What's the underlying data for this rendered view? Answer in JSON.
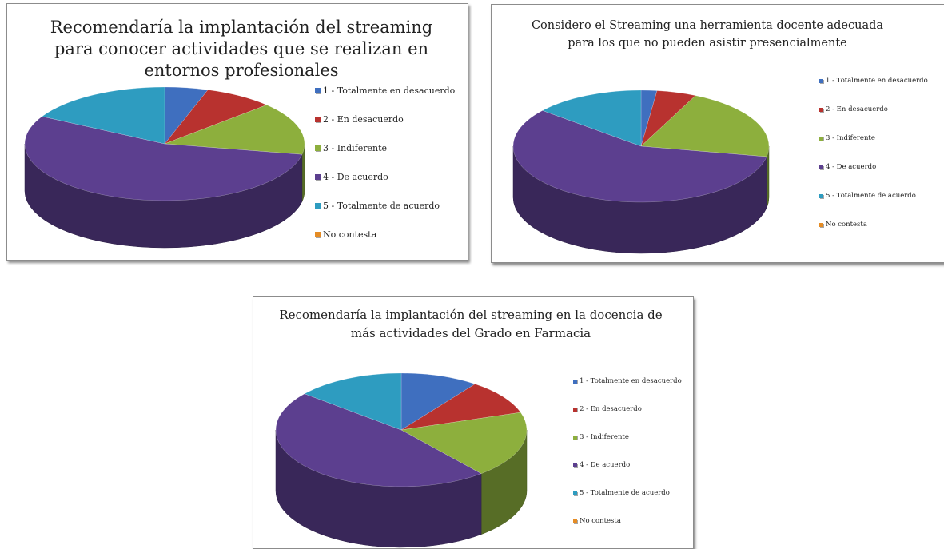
{
  "categories": [
    "1 - Totalmente en desacuerdo",
    "2 - En desacuerdo",
    "3 - Indiferente",
    "4 - De acuerdo",
    "5 - Totalmente de acuerdo",
    "No contesta"
  ],
  "colors": [
    "#3F6FBF",
    "#B8322F",
    "#8DAF3D",
    "#5C3F8F",
    "#2E9CC0",
    "#E58C25"
  ],
  "chart_data": [
    {
      "type": "pie",
      "title": "Recomendaría la implantación del streaming\npara conocer actividades que se realizan en\nentornos profesionales",
      "categories": [
        "1 - Totalmente en desacuerdo",
        "2 - En desacuerdo",
        "3 - Indiferente",
        "4 - De acuerdo",
        "5 - Totalmente de acuerdo",
        "No contesta"
      ],
      "values": [
        5,
        8,
        15,
        55,
        17,
        0
      ],
      "unit": "%",
      "legend_position": "right",
      "style": "3d"
    },
    {
      "type": "pie",
      "title": "Considero el Streaming una herramienta docente adecuada\npara los que no pueden asistir presencialmente",
      "categories": [
        "1 - Totalmente en desacuerdo",
        "2 - En desacuerdo",
        "3 - Indiferente",
        "4 - De acuerdo",
        "5 - Totalmente de acuerdo",
        "No contesta"
      ],
      "values": [
        2,
        5,
        21,
        58,
        14,
        0
      ],
      "unit": "%",
      "legend_position": "right",
      "style": "3d"
    },
    {
      "type": "pie",
      "title": "Recomendaría la implantación del streaming en la docencia de\nmás actividades del Grado en Farmacia",
      "categories": [
        "1 - Totalmente en desacuerdo",
        "2 - En desacuerdo",
        "3 - Indiferente",
        "4 - De acuerdo",
        "5 - Totalmente de acuerdo",
        "No contesta"
      ],
      "values": [
        10,
        10,
        19,
        47,
        14,
        0
      ],
      "unit": "%",
      "legend_position": "right",
      "style": "3d"
    }
  ]
}
